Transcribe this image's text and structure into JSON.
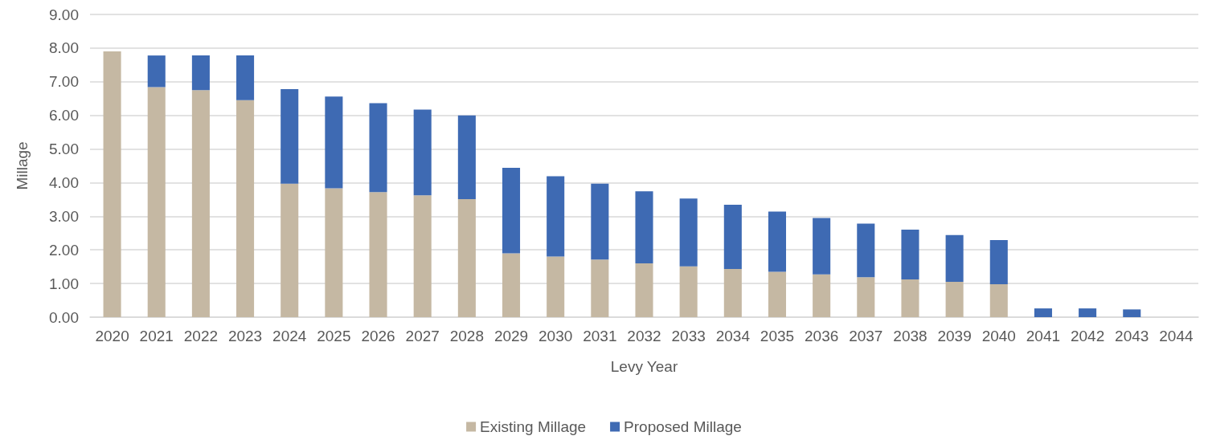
{
  "chart_data": {
    "type": "bar",
    "stacked": true,
    "xlabel": "Levy Year",
    "ylabel": "Millage",
    "categories": [
      "2020",
      "2021",
      "2022",
      "2023",
      "2024",
      "2025",
      "2026",
      "2027",
      "2028",
      "2029",
      "2030",
      "2031",
      "2032",
      "2033",
      "2034",
      "2035",
      "2036",
      "2037",
      "2038",
      "2039",
      "2040",
      "2041",
      "2042",
      "2043",
      "2044"
    ],
    "series": [
      {
        "name": "Existing Millage",
        "color": "#c5b8a3",
        "values": [
          7.9,
          6.84,
          6.75,
          6.45,
          3.97,
          3.83,
          3.72,
          3.62,
          3.51,
          1.9,
          1.8,
          1.71,
          1.6,
          1.51,
          1.43,
          1.35,
          1.27,
          1.19,
          1.12,
          1.05,
          0.98,
          0,
          0,
          0,
          0
        ]
      },
      {
        "name": "Proposed Millage",
        "color": "#3e6ab3",
        "values": [
          0,
          0.94,
          1.03,
          1.33,
          2.81,
          2.73,
          2.64,
          2.55,
          2.49,
          2.54,
          2.39,
          2.26,
          2.14,
          2.02,
          1.91,
          1.79,
          1.68,
          1.59,
          1.48,
          1.39,
          1.31,
          0.26,
          0.26,
          0.23,
          0
        ]
      }
    ],
    "ylim": [
      0,
      9
    ],
    "yticks": [
      {
        "value": 0,
        "label": "0.00"
      },
      {
        "value": 1,
        "label": "1.00"
      },
      {
        "value": 2,
        "label": "2.00"
      },
      {
        "value": 3,
        "label": "3.00"
      },
      {
        "value": 4,
        "label": "4.00"
      },
      {
        "value": 5,
        "label": "5.00"
      },
      {
        "value": 6,
        "label": "6.00"
      },
      {
        "value": 7,
        "label": "7.00"
      },
      {
        "value": 8,
        "label": "8.00"
      },
      {
        "value": 9,
        "label": "9.00"
      }
    ],
    "grid": "y",
    "legend": "bottom"
  }
}
